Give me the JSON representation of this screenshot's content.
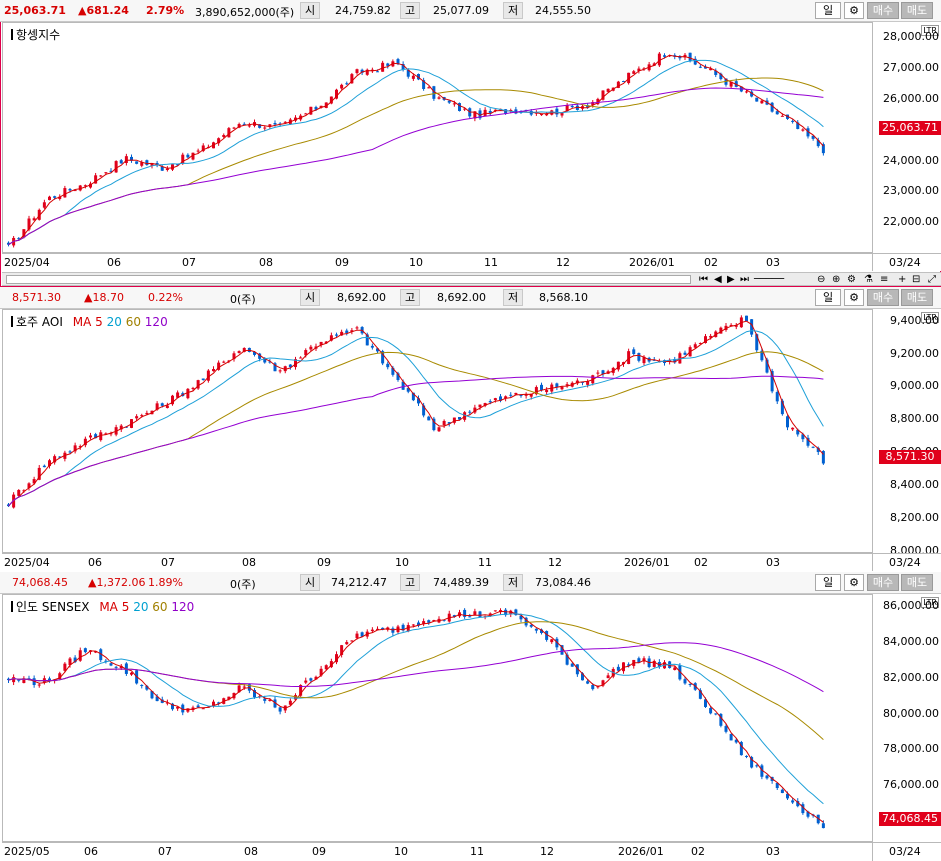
{
  "panels": [
    {
      "id": "hsi",
      "header": {
        "price": "25,063.71",
        "change": "▲681.24",
        "pct": "2.79%",
        "volume": "3,890,652,000(주)",
        "open_label": "시",
        "open": "24,759.82",
        "high_label": "고",
        "high": "25,077.09",
        "low_label": "저",
        "low": "24,555.50"
      },
      "title": "항셍지수",
      "show_ma_legend": false,
      "y_ticks": [
        "28,000.00",
        "27,000.00",
        "26,000.00",
        "25,000.00",
        "24,000.00",
        "23,000.00",
        "22,000.00"
      ],
      "y_min": 21000,
      "y_max": 28500,
      "last_price_tag": "25,063.71",
      "x_labels": [
        "2025/04",
        "06",
        "07",
        "08",
        "09",
        "10",
        "11",
        "12",
        "2026/01",
        "02",
        "03"
      ],
      "x_right_label": "03/24",
      "series_start": 21200,
      "series_path": [
        21200,
        22800,
        23300,
        24100,
        23800,
        24400,
        25300,
        25100,
        25800,
        26900,
        27200,
        26100,
        25500,
        25700,
        25600,
        25900,
        26800,
        27600,
        27000,
        26200,
        25400,
        24400
      ],
      "ma_levels": {
        "ma60_end": 26300,
        "ma120_end": 26200
      }
    },
    {
      "id": "aoi",
      "header": {
        "price": "8,571.30",
        "change": "▲18.70",
        "pct": "0.22%",
        "volume": "0(주)",
        "open_label": "시",
        "open": "8,692.00",
        "high_label": "고",
        "high": "8,692.00",
        "low_label": "저",
        "low": "8,568.10"
      },
      "title": "호주 AOI",
      "show_ma_legend": true,
      "ma_legend": {
        "prefix": "MA",
        "ma5": "5",
        "ma20": "20",
        "ma60": "60",
        "ma120": "120"
      },
      "y_ticks": [
        "9,400.00",
        "9,200.00",
        "9,000.00",
        "8,800.00",
        "8,600.00",
        "8,400.00",
        "8,200.00",
        "8,000.00"
      ],
      "y_min": 7990,
      "y_max": 9470,
      "last_price_tag": "8,571.30",
      "x_labels": [
        "2025/04",
        "06",
        "07",
        "08",
        "09",
        "10",
        "11",
        "12",
        "2026/01",
        "02",
        "03"
      ],
      "x_right_label": "03/24",
      "series_path": [
        8300,
        8550,
        8680,
        8780,
        8900,
        9050,
        9250,
        9100,
        9280,
        9350,
        9050,
        8750,
        8880,
        8950,
        9000,
        9050,
        9200,
        9150,
        9300,
        9420,
        8800,
        8560
      ]
    },
    {
      "id": "sensex",
      "header": {
        "price": "74,068.45",
        "change": "▲1,372.06",
        "pct": "1.89%",
        "volume": "0(주)",
        "open_label": "시",
        "open": "74,212.47",
        "high_label": "고",
        "high": "74,489.39",
        "low_label": "저",
        "low": "73,084.46"
      },
      "title": "인도 SENSEX",
      "show_ma_legend": true,
      "ma_legend": {
        "prefix": "MA",
        "ma5": "5",
        "ma20": "20",
        "ma60": "60",
        "ma120": "120"
      },
      "y_ticks": [
        "86,000.00",
        "84,000.00",
        "82,000.00",
        "80,000.00",
        "78,000.00",
        "76,000.00",
        "74,000.00"
      ],
      "y_min": 72800,
      "y_max": 86700,
      "last_price_tag": "74,068.45",
      "x_labels": [
        "2025/05",
        "06",
        "07",
        "08",
        "09",
        "10",
        "11",
        "12",
        "2026/01",
        "02",
        "03"
      ],
      "x_right_label": "03/24",
      "series_path": [
        82000,
        81800,
        83700,
        82500,
        80500,
        80200,
        81500,
        80300,
        82500,
        84500,
        84800,
        85500,
        85600,
        85700,
        84000,
        81500,
        83000,
        82800,
        80500,
        77500,
        75500,
        73800
      ]
    }
  ],
  "controls": {
    "period_label": "일",
    "buy_label": "매수",
    "sell_label": "매도",
    "ltr": "LTR"
  }
}
